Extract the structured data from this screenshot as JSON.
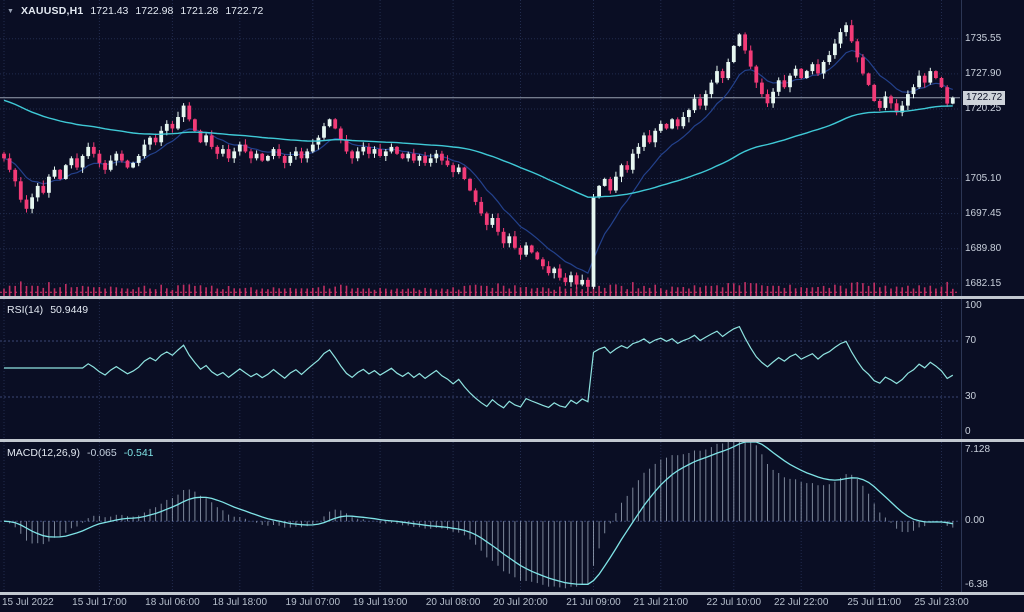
{
  "window": {
    "title": {
      "symbol_period": "XAUUSD,H1",
      "open": "1721.43",
      "high": "1722.98",
      "low": "1721.28",
      "close": "1722.72"
    },
    "icons": {
      "collapse": "▼"
    }
  },
  "colors": {
    "background": "#0a0e24",
    "grid": "#222c4e",
    "level_line": "#3a4774",
    "bull": "#e6f7f1",
    "bear": "#f23b77",
    "volume": "#e0356f",
    "ma_slow": "#3fc9d6",
    "ma_fast": "#23418c",
    "rsi_line": "#8fe3e0",
    "macd_signal": "#7fe3e6",
    "macd_hist": "#b9c6d8",
    "price_line": "#98a0b0",
    "axis_text": "#c9d0dc",
    "current_price_bg": "#ced3da",
    "current_price_text": "#0c1128",
    "separator": "#c2c8d0",
    "dashed_line": "#e0356f"
  },
  "price_axis": {
    "labels": [
      {
        "text": "1735.55",
        "value": 1735.55
      },
      {
        "text": "1727.90",
        "value": 1727.9
      },
      {
        "text": "1720.25",
        "value": 1720.25
      },
      {
        "text": "1705.10",
        "value": 1705.1
      },
      {
        "text": "1697.45",
        "value": 1697.45
      },
      {
        "text": "1689.80",
        "value": 1689.8
      },
      {
        "text": "1682.15",
        "value": 1682.15
      }
    ],
    "current": {
      "text": "1722.72",
      "value": 1722.72
    },
    "range": {
      "min": 1679.5,
      "max": 1744.0
    },
    "dashed_line_value": 1680.3
  },
  "time_axis": {
    "labels": [
      {
        "text": "15 Jul 2022",
        "bar": 0
      },
      {
        "text": "15 Jul 17:00",
        "bar": 17
      },
      {
        "text": "18 Jul 06:00",
        "bar": 30
      },
      {
        "text": "18 Jul 18:00",
        "bar": 42
      },
      {
        "text": "19 Jul 07:00",
        "bar": 55
      },
      {
        "text": "19 Jul 19:00",
        "bar": 67
      },
      {
        "text": "20 Jul 08:00",
        "bar": 80
      },
      {
        "text": "20 Jul 20:00",
        "bar": 92
      },
      {
        "text": "21 Jul 09:00",
        "bar": 105
      },
      {
        "text": "21 Jul 21:00",
        "bar": 117
      },
      {
        "text": "22 Jul 10:00",
        "bar": 130
      },
      {
        "text": "22 Jul 22:00",
        "bar": 142
      },
      {
        "text": "25 Jul 11:00",
        "bar": 155
      },
      {
        "text": "25 Jul 23:00",
        "bar": 167
      }
    ]
  },
  "rsi_panel": {
    "label": "RSI(14)",
    "value": "50.9449",
    "levels": [
      {
        "text": "100",
        "value": 100,
        "line": false
      },
      {
        "text": "70",
        "value": 70,
        "line": true
      },
      {
        "text": "30",
        "value": 30,
        "line": true
      },
      {
        "text": "0",
        "value": 0,
        "line": false
      }
    ],
    "range": {
      "min": 0,
      "max": 100
    }
  },
  "macd_panel": {
    "label": "MACD(12,26,9)",
    "main_value": "-0.065",
    "signal_value": "-0.541",
    "axis": [
      {
        "text": "7.128",
        "value": 7.128
      },
      {
        "text": "0.00",
        "value": 0
      },
      {
        "text": "-6.38",
        "value": -6.38
      }
    ],
    "range": {
      "min": -6.38,
      "max": 7.128
    }
  },
  "chart_data": {
    "type": "candlestick",
    "symbol": "XAUUSD",
    "timeframe": "H1",
    "title": "XAUUSD,H1 1721.43 1722.98 1721.28 1722.72",
    "first_open": 1710.5,
    "closes": [
      1709.5,
      1707,
      1704.5,
      1700.5,
      1698.5,
      1701,
      1703.5,
      1702,
      1705.5,
      1707,
      1705,
      1708,
      1709.5,
      1707.5,
      1710,
      1712,
      1710.5,
      1708.5,
      1707,
      1709,
      1710.5,
      1709,
      1707.5,
      1708.5,
      1710,
      1712.5,
      1714,
      1713,
      1715.5,
      1717,
      1716,
      1718.5,
      1721,
      1718,
      1715.5,
      1713,
      1714.5,
      1712,
      1710.5,
      1711.5,
      1709.5,
      1711,
      1712.5,
      1711,
      1709.5,
      1710.5,
      1709,
      1710,
      1711.5,
      1710,
      1708.5,
      1710,
      1711,
      1709.5,
      1711,
      1712.5,
      1714,
      1716.5,
      1718,
      1716,
      1713.5,
      1711,
      1709.5,
      1711,
      1712,
      1710.5,
      1711.5,
      1710,
      1711,
      1712,
      1710.5,
      1709.5,
      1710.5,
      1709,
      1710,
      1708.5,
      1709.5,
      1710.5,
      1709,
      1708,
      1706.5,
      1707.5,
      1705,
      1702.5,
      1700,
      1697.5,
      1695,
      1696.5,
      1693.5,
      1691,
      1692.5,
      1690,
      1688.5,
      1690.5,
      1689,
      1687.5,
      1686,
      1684.5,
      1685.5,
      1683.5,
      1682.5,
      1684,
      1682,
      1683,
      1681.5,
      1701,
      1703.5,
      1705,
      1702.5,
      1705.5,
      1708,
      1707,
      1710.5,
      1712,
      1714.5,
      1713,
      1715.5,
      1717,
      1716,
      1718,
      1716.5,
      1718.5,
      1720,
      1722.5,
      1721,
      1723.5,
      1726,
      1728.5,
      1727,
      1730.5,
      1734,
      1736.5,
      1733,
      1729.5,
      1726,
      1723.5,
      1721.5,
      1724,
      1726.5,
      1725,
      1727.5,
      1729,
      1727,
      1728.5,
      1730,
      1728,
      1730.5,
      1732,
      1734.5,
      1737,
      1738.5,
      1735,
      1731.5,
      1728,
      1725.5,
      1722,
      1720.5,
      1723,
      1721.5,
      1719.5,
      1721,
      1723.5,
      1725,
      1727.5,
      1726,
      1728.5,
      1727,
      1725,
      1721.43,
      1722.72
    ],
    "wick_pattern": [
      0.2,
      0.9,
      0.5,
      1.3,
      0.4,
      0.8,
      1.1,
      0.3,
      0.7,
      1.2,
      0.6,
      1.0
    ],
    "wick_scale": 0.9,
    "indicators": {
      "ma_slow": {
        "type": "ema",
        "period": 72,
        "seed": 1722.5
      },
      "ma_fast": {
        "type": "ema",
        "period": 10
      },
      "rsi": {
        "period": 14
      },
      "macd": {
        "fast": 12,
        "slow": 26,
        "signal": 9
      },
      "volume": {
        "scale": 2.6,
        "base": 3,
        "max": 44
      }
    }
  }
}
